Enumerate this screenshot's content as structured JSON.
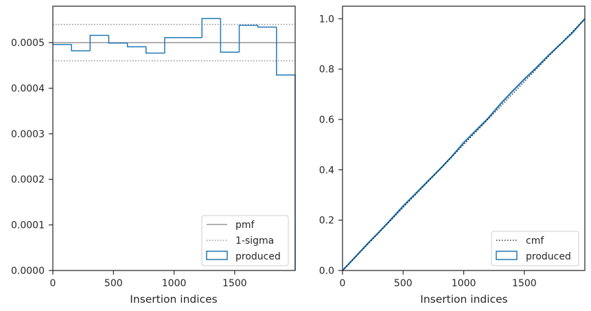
{
  "colors": {
    "produced": "#1f77b4",
    "reference": "#808080",
    "cmf": "#000000",
    "axes": "#262626"
  },
  "chart_data": [
    {
      "type": "histogram",
      "xlabel": "Insertion indices",
      "ylabel": "",
      "xlim": [
        0,
        1999
      ],
      "ylim": [
        0,
        0.00058
      ],
      "xticks": [
        0,
        500,
        1000,
        1500
      ],
      "xtick_labels": [
        "0",
        "500",
        "1000",
        "1500"
      ],
      "yticks": [
        0,
        0.0001,
        0.0002,
        0.0003,
        0.0004,
        0.0005
      ],
      "ytick_labels": [
        "0.0000",
        "0.0001",
        "0.0002",
        "0.0003",
        "0.0004",
        "0.0005"
      ],
      "bin_edges": [
        0,
        153.8,
        307.5,
        461.3,
        615.1,
        768.8,
        922.6,
        1076.4,
        1230.2,
        1383.9,
        1537.7,
        1691.5,
        1845.2,
        1999
      ],
      "produced": [
        0.000496,
        0.000482,
        0.000516,
        0.000499,
        0.000491,
        0.000477,
        0.000511,
        0.000511,
        0.000553,
        0.000479,
        0.000538,
        0.000534,
        0.000429
      ],
      "pmf": 0.0005,
      "sigma_upper": 0.00054,
      "sigma_lower": 0.00046,
      "legend": [
        "pmf",
        "1-sigma",
        "produced"
      ],
      "legend_position": "lower right",
      "grid": false
    },
    {
      "type": "line",
      "xlabel": "Insertion indices",
      "ylabel": "",
      "xlim": [
        0,
        1999
      ],
      "ylim": [
        0,
        1.05
      ],
      "xticks": [
        0,
        500,
        1000,
        1500
      ],
      "xtick_labels": [
        "0",
        "500",
        "1000",
        "1500"
      ],
      "yticks": [
        0,
        0.2,
        0.4,
        0.6,
        0.8,
        1.0
      ],
      "ytick_labels": [
        "0.0",
        "0.2",
        "0.4",
        "0.6",
        "0.8",
        "1.0"
      ],
      "cmf_x": [
        0,
        1999
      ],
      "cmf_y": [
        0,
        1
      ],
      "produced_x": [
        0,
        100,
        200,
        300,
        400,
        500,
        600,
        700,
        800,
        900,
        1000,
        1100,
        1200,
        1300,
        1400,
        1500,
        1600,
        1700,
        1800,
        1900,
        1999
      ],
      "produced_y": [
        0,
        0.051,
        0.103,
        0.152,
        0.203,
        0.256,
        0.304,
        0.353,
        0.401,
        0.452,
        0.508,
        0.556,
        0.604,
        0.66,
        0.711,
        0.76,
        0.806,
        0.855,
        0.9,
        0.946,
        1.0
      ],
      "legend": [
        "cmf",
        "produced"
      ],
      "legend_position": "lower right",
      "grid": false
    }
  ]
}
